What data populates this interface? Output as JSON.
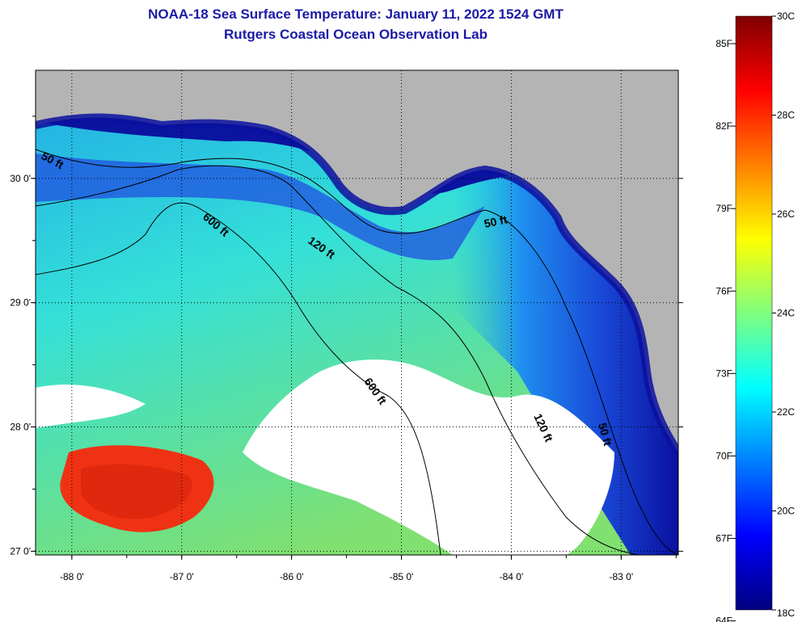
{
  "title": {
    "line1": "NOAA-18 Sea Surface Temperature:  January 11, 2022 1524 GMT",
    "line2": "Rutgers Coastal Ocean Observation Lab"
  },
  "map": {
    "lon_range": [
      -88.33,
      -82.48
    ],
    "lat_range": [
      26.97,
      30.87
    ],
    "lon_ticks": [
      {
        "value": -88,
        "label": "-88 0'"
      },
      {
        "value": -87,
        "label": "-87 0'"
      },
      {
        "value": -86,
        "label": "-86 0'"
      },
      {
        "value": -85,
        "label": "-85 0'"
      },
      {
        "value": -84,
        "label": "-84 0'"
      },
      {
        "value": -83,
        "label": "-83 0'"
      }
    ],
    "lat_ticks": [
      {
        "value": 30,
        "label": "30 0'"
      },
      {
        "value": 29,
        "label": "29 0'"
      },
      {
        "value": 28,
        "label": "28 0'"
      },
      {
        "value": 27,
        "label": "27 0'"
      }
    ],
    "depth_contours": [
      {
        "label": "50 ft",
        "color": "#000000"
      },
      {
        "label": "120 ft",
        "color": "#000000"
      },
      {
        "label": "600 ft",
        "color": "#000000"
      }
    ],
    "colors": {
      "land": "#b4b4b4",
      "cloud": "#ffffff",
      "coastal_cold": "#0a14a0",
      "shelf": "#1e64e6",
      "mid": "#1ebee6",
      "warm_offshore": "#78e664",
      "hot_spot": "#f03214"
    }
  },
  "colorbar": {
    "min_c": 18,
    "max_c": 30,
    "celsius_labels": [
      "30C",
      "28C",
      "26C",
      "24C",
      "22C",
      "20C",
      "18C"
    ],
    "fahrenheit_labels": [
      "85F",
      "82F",
      "79F",
      "76F",
      "73F",
      "70F",
      "67F",
      "64F"
    ],
    "stops": [
      "#00007f",
      "#0000ff",
      "#007fff",
      "#00ffff",
      "#7fff7f",
      "#ffff00",
      "#ff7f00",
      "#ff0000",
      "#7f0000"
    ]
  }
}
